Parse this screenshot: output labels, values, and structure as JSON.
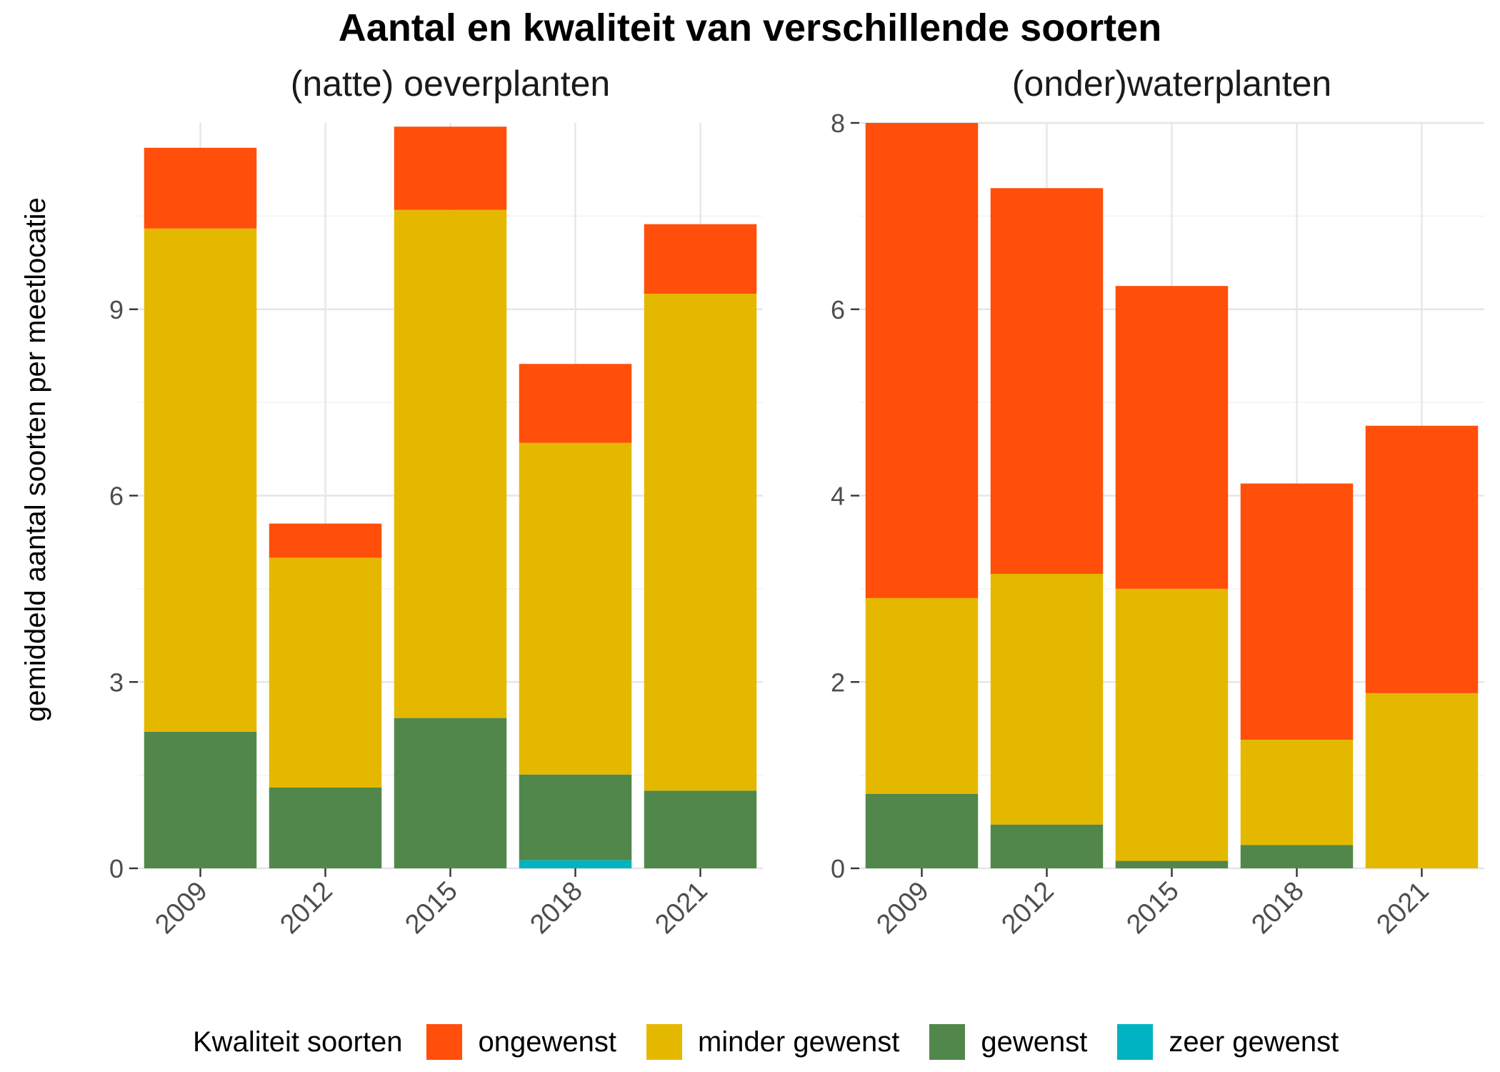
{
  "title": "Aantal en kwaliteit van verschillende soorten",
  "y_label": "gemiddeld aantal soorten per meetlocatie",
  "legend": {
    "title": "Kwaliteit soorten",
    "items": [
      {
        "label": "ongewenst",
        "color": "#FF4F0A"
      },
      {
        "label": "minder gewenst",
        "color": "#E5B800"
      },
      {
        "label": "gewenst",
        "color": "#52874C"
      },
      {
        "label": "zeer gewenst",
        "color": "#00B3C2"
      }
    ]
  },
  "chart_data": [
    {
      "type": "bar",
      "stacked": true,
      "title": "(natte) oeverplanten",
      "categories": [
        "2009",
        "2012",
        "2015",
        "2018",
        "2021"
      ],
      "ylim": [
        0,
        12
      ],
      "yticks": [
        0,
        3,
        6,
        9
      ],
      "grid": true,
      "series": [
        {
          "name": "zeer gewenst",
          "color": "#00B3C2",
          "values": [
            0,
            0,
            0,
            0.13,
            0
          ]
        },
        {
          "name": "gewenst",
          "color": "#52874C",
          "values": [
            2.2,
            1.3,
            2.42,
            1.38,
            1.25
          ]
        },
        {
          "name": "minder gewenst",
          "color": "#E5B800",
          "values": [
            8.1,
            3.7,
            8.18,
            5.34,
            8.0
          ]
        },
        {
          "name": "ongewenst",
          "color": "#FF4F0A",
          "values": [
            1.3,
            0.55,
            1.34,
            1.27,
            1.12
          ]
        }
      ]
    },
    {
      "type": "bar",
      "stacked": true,
      "title": "(onder)waterplanten",
      "categories": [
        "2009",
        "2012",
        "2015",
        "2018",
        "2021"
      ],
      "ylim": [
        0,
        8
      ],
      "yticks": [
        0,
        2,
        4,
        6,
        8
      ],
      "grid": true,
      "series": [
        {
          "name": "zeer gewenst",
          "color": "#00B3C2",
          "values": [
            0,
            0,
            0,
            0,
            0
          ]
        },
        {
          "name": "gewenst",
          "color": "#52874C",
          "values": [
            0.8,
            0.47,
            0.08,
            0.25,
            0
          ]
        },
        {
          "name": "minder gewenst",
          "color": "#E5B800",
          "values": [
            2.1,
            2.69,
            2.92,
            1.13,
            1.88
          ]
        },
        {
          "name": "ongewenst",
          "color": "#FF4F0A",
          "values": [
            5.1,
            4.14,
            3.25,
            2.75,
            2.87
          ]
        }
      ]
    }
  ]
}
